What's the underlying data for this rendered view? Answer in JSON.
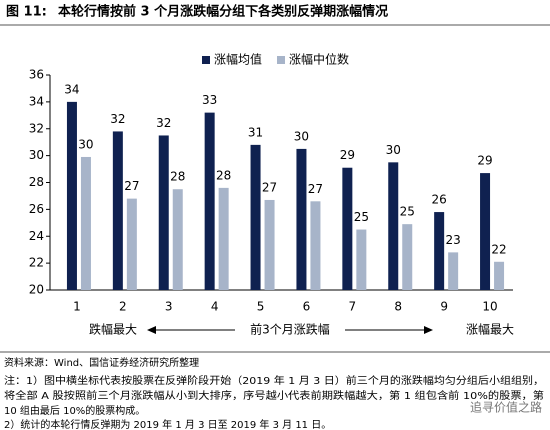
{
  "figure_label": "图 11:",
  "chart_data": {
    "type": "bar",
    "title": "本轮行情按前 3 个月涨跌幅分组下各类别反弹期涨幅情况",
    "categories": [
      "1",
      "2",
      "3",
      "4",
      "5",
      "6",
      "7",
      "8",
      "9",
      "10"
    ],
    "series": [
      {
        "name": "涨幅均值",
        "color": "#0f2150",
        "values": [
          34.0,
          31.8,
          31.5,
          33.2,
          30.8,
          30.5,
          29.1,
          29.5,
          25.8,
          28.7
        ],
        "value_labels": [
          "34",
          "32",
          "32",
          "33",
          "31",
          "30",
          "29",
          "30",
          "26",
          "29"
        ]
      },
      {
        "name": "涨幅中位数",
        "color": "#a7b4c9",
        "values": [
          29.9,
          26.8,
          27.5,
          27.6,
          26.7,
          26.6,
          24.5,
          24.9,
          22.8,
          22.1
        ],
        "value_labels": [
          "30",
          "27",
          "28",
          "28",
          "27",
          "27",
          "25",
          "25",
          "23",
          "22"
        ]
      }
    ],
    "ylim": [
      20,
      36
    ],
    "yticks": [
      20,
      22,
      24,
      26,
      28,
      30,
      32,
      34,
      36
    ],
    "xlabel": "前3个月涨跌幅",
    "xlabel_left": "跌幅最大",
    "xlabel_right": "涨幅最大"
  },
  "notes": [
    "资料来源：Wind、国信证券经济研究所整理",
    "注：1）图中横坐标代表按股票在反弹阶段开始（2019 年 1 月 3 日）前三个月的涨跌幅均匀分组后小组组别，",
    "将全部 A 股按照前三个月涨跌幅从小到大排序，序号越小代表前期跌幅越大，第 1 组包含前 10%的股票，第",
    "10 组由最后 10%的股票构成。",
    "2）统计的本轮行情反弹期为 2019 年 1 月 3 日至 2019 年 3 月 11 日。"
  ],
  "watermark": "追寻价值之路"
}
